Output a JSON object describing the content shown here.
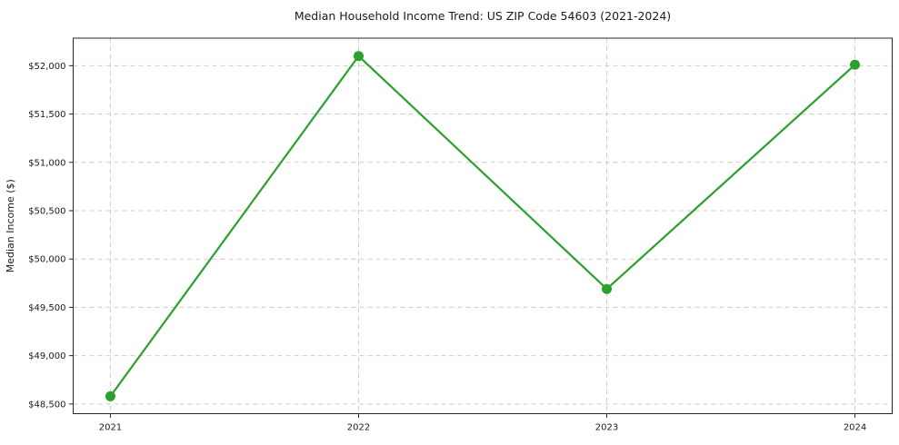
{
  "chart_data": {
    "type": "line",
    "title": "Median Household Income Trend: US ZIP Code 54603 (2021-2024)",
    "xlabel": "",
    "ylabel": "Median Income ($)",
    "x": [
      2021,
      2022,
      2023,
      2024
    ],
    "series": [
      {
        "name": "Median Household Income",
        "values": [
          48580,
          52100,
          49690,
          52010
        ]
      }
    ],
    "xtick_labels": [
      "2021",
      "2022",
      "2023",
      "2024"
    ],
    "yticks": [
      48500,
      49000,
      49500,
      50000,
      50500,
      51000,
      51500,
      52000
    ],
    "ytick_labels": [
      "$48,500",
      "$49,000",
      "$49,500",
      "$50,000",
      "$50,500",
      "$51,000",
      "$51,500",
      "$52,000"
    ],
    "xlim": [
      2020.85,
      2024.15
    ],
    "ylim": [
      48400,
      52285
    ],
    "grid": "on",
    "grid_style": "dashed",
    "legend": "none",
    "colors": {
      "line": "#2ca02c",
      "marker": "#2ca02c",
      "grid": "#cccccc",
      "axis": "#262626",
      "text": "#1a1a1a",
      "background": "#ffffff"
    }
  }
}
